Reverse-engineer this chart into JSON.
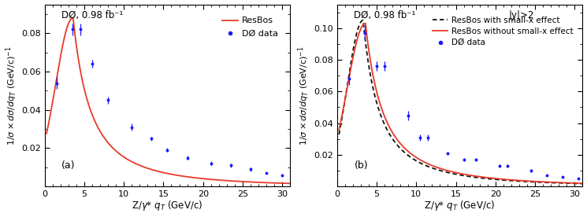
{
  "panel_a": {
    "label": "(a)",
    "annotation": "DØ, 0.98 fb⁻¹",
    "xlim": [
      0,
      31
    ],
    "ylim": [
      0,
      0.095
    ],
    "yticks": [
      0.02,
      0.04,
      0.06,
      0.08
    ],
    "resbos_color": "#e8392a",
    "data_color": "#1a1aff",
    "data_x": [
      1.5,
      3.5,
      4.5,
      6.0,
      8.0,
      11.0,
      13.5,
      15.5,
      18.0,
      21.0,
      23.5,
      26.0,
      28.0,
      30.0
    ],
    "data_y": [
      0.054,
      0.082,
      0.082,
      0.064,
      0.045,
      0.031,
      0.025,
      0.019,
      0.015,
      0.012,
      0.011,
      0.009,
      0.007,
      0.006
    ],
    "data_yerr": [
      0.003,
      0.003,
      0.003,
      0.002,
      0.002,
      0.002,
      0.001,
      0.001,
      0.001,
      0.001,
      0.001,
      0.001,
      0.0005,
      0.0005
    ],
    "curve_peak": 0.088,
    "curve_xpeak": 3.6,
    "curve_sigma_rise": 2.2,
    "curve_alpha": 1.55,
    "curve_decay": 0.025
  },
  "panel_b": {
    "label": "(b)",
    "annotation": "DØ, 0.98 fb⁻¹",
    "annotation2": "|y|>2",
    "xlim": [
      0,
      31
    ],
    "ylim": [
      0,
      0.115
    ],
    "yticks": [
      0.02,
      0.04,
      0.06,
      0.08,
      0.1
    ],
    "resbos_with_color": "#111111",
    "resbos_without_color": "#e8392a",
    "data_color": "#1a1aff",
    "data_x": [
      1.5,
      3.5,
      5.0,
      6.0,
      9.0,
      10.5,
      11.5,
      14.0,
      16.0,
      17.5,
      20.5,
      21.5,
      24.5,
      26.5,
      28.5,
      30.5
    ],
    "data_y": [
      0.068,
      0.097,
      0.076,
      0.076,
      0.045,
      0.031,
      0.031,
      0.021,
      0.017,
      0.017,
      0.013,
      0.013,
      0.01,
      0.007,
      0.006,
      0.005
    ],
    "data_yerr": [
      0.004,
      0.005,
      0.003,
      0.003,
      0.003,
      0.002,
      0.002,
      0.001,
      0.001,
      0.001,
      0.001,
      0.001,
      0.001,
      0.0005,
      0.0005,
      0.0005
    ],
    "with_peak": 0.105,
    "with_xpeak": 3.3,
    "with_sigma_rise": 2.0,
    "with_alpha": 1.55,
    "with_decay": 0.022,
    "without_peak": 0.103,
    "without_xpeak": 3.6,
    "without_sigma_rise": 2.3,
    "without_alpha": 1.55,
    "without_decay": 0.022
  },
  "figsize": [
    7.45,
    2.76
  ],
  "dpi": 100
}
